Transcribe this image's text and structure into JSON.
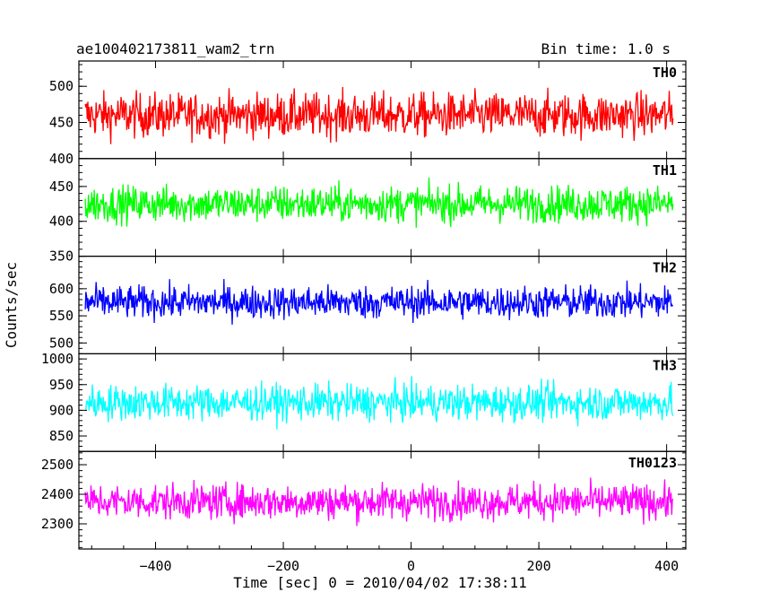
{
  "header": {
    "title": "ae100402173811_wam2_trn",
    "bin_time": "Bin time: 1.0 s"
  },
  "chart_data": {
    "type": "line",
    "xlabel": "Time [sec] 0 = 2010/04/02 17:38:11",
    "ylabel": "Counts/sec",
    "xlim": [
      -520,
      430
    ],
    "x_range": [
      -510,
      410
    ],
    "x_ticks": [
      -400,
      -200,
      0,
      200,
      400
    ],
    "x_tick_labels": [
      "−400",
      "−200",
      "0",
      "200",
      "400"
    ],
    "panels": [
      {
        "name": "TH0",
        "color": "#ff0000",
        "ylim": [
          400,
          535
        ],
        "yticks": [
          400,
          450,
          500
        ],
        "ytick_labels": [
          "400",
          "450",
          "500"
        ],
        "mean": 460,
        "spread": 28
      },
      {
        "name": "TH1",
        "color": "#00ff00",
        "ylim": [
          350,
          490
        ],
        "yticks": [
          350,
          400,
          450
        ],
        "ytick_labels": [
          "350",
          "400",
          "450"
        ],
        "mean": 425,
        "spread": 24
      },
      {
        "name": "TH2",
        "color": "#0000ff",
        "ylim": [
          480,
          660
        ],
        "yticks": [
          500,
          550,
          600
        ],
        "ytick_labels": [
          "500",
          "550",
          "600"
        ],
        "mean": 575,
        "spread": 28
      },
      {
        "name": "TH3",
        "color": "#00ffff",
        "ylim": [
          820,
          1010
        ],
        "yticks": [
          850,
          900,
          950,
          1000
        ],
        "ytick_labels": [
          "850",
          "900",
          "950",
          "1000"
        ],
        "mean": 915,
        "spread": 32
      },
      {
        "name": "TH0123",
        "color": "#ff00ff",
        "ylim": [
          2215,
          2545
        ],
        "yticks": [
          2300,
          2400,
          2500
        ],
        "ytick_labels": [
          "2300",
          "2400",
          "2500"
        ],
        "mean": 2375,
        "spread": 55
      }
    ]
  }
}
